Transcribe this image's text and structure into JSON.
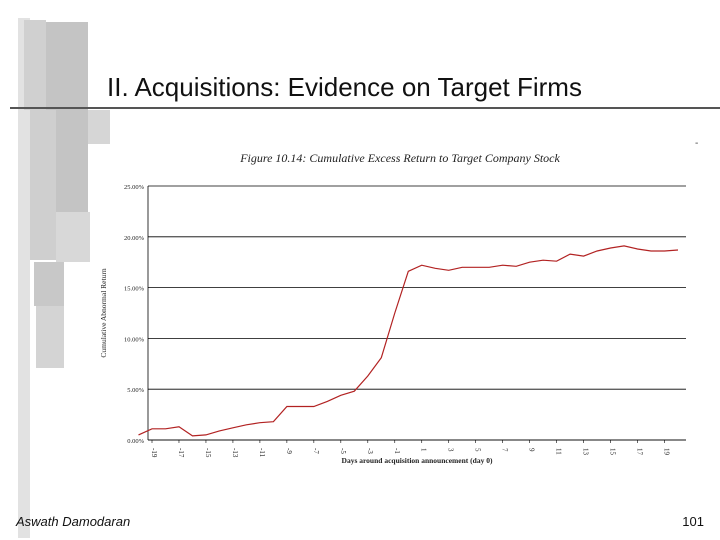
{
  "slide": {
    "title": "II. Acquisitions: Evidence on Target Firms",
    "footer_author": "Aswath Damodaran",
    "page_number": "101",
    "stray_mark": "-"
  },
  "colors": {
    "line": "#b22222",
    "grid": "#000000",
    "deco_dark": "#c8c8c8",
    "deco_light": "#e4e4e4"
  },
  "chart_data": {
    "type": "line",
    "title": "Figure 10.14: Cumulative Excess Return to Target Company Stock",
    "xlabel": "Days around acquisition announcement (day 0)",
    "ylabel": "Cumulative Abnormal Return",
    "ylim": [
      0,
      25
    ],
    "yticks": [
      0,
      5,
      10,
      15,
      20,
      25
    ],
    "ytick_labels": [
      "0.00%",
      "5.00%",
      "10.00%",
      "15.00%",
      "20.00%",
      "25.00%"
    ],
    "xlim": [
      -19,
      20
    ],
    "xticks": [
      -19,
      -17,
      -15,
      -13,
      -11,
      -9,
      -7,
      -5,
      -3,
      -1,
      1,
      3,
      5,
      7,
      9,
      11,
      13,
      15,
      17,
      19
    ],
    "xtick_labels": [
      "-19",
      "-17",
      "-15",
      "-13",
      "-11",
      "-9",
      "-7",
      "-5",
      "-3",
      "-1",
      "1",
      "3",
      "5",
      "7",
      "9",
      "11",
      "13",
      "15",
      "17",
      "19"
    ],
    "grid": "horizontal",
    "series": [
      {
        "x": [
          -20,
          -19,
          -18,
          -17,
          -16,
          -15,
          -14,
          -13,
          -12,
          -11,
          -10,
          -9,
          -8,
          -7,
          -6,
          -5,
          -4,
          -3,
          -2,
          -1,
          0,
          1,
          2,
          3,
          4,
          5,
          6,
          7,
          8,
          9,
          10,
          11,
          12,
          13,
          14,
          15,
          16,
          17,
          18,
          19,
          20
        ],
        "y": [
          0.5,
          1.1,
          1.1,
          1.3,
          0.4,
          0.5,
          0.9,
          1.2,
          1.5,
          1.7,
          1.8,
          3.3,
          3.3,
          3.3,
          3.8,
          4.4,
          4.8,
          6.3,
          8.1,
          12.5,
          16.6,
          17.2,
          16.9,
          16.7,
          17.0,
          17.0,
          17.0,
          17.2,
          17.1,
          17.5,
          17.7,
          17.6,
          18.3,
          18.1,
          18.6,
          18.9,
          19.1,
          18.8,
          18.6,
          18.6,
          18.7
        ]
      }
    ]
  }
}
